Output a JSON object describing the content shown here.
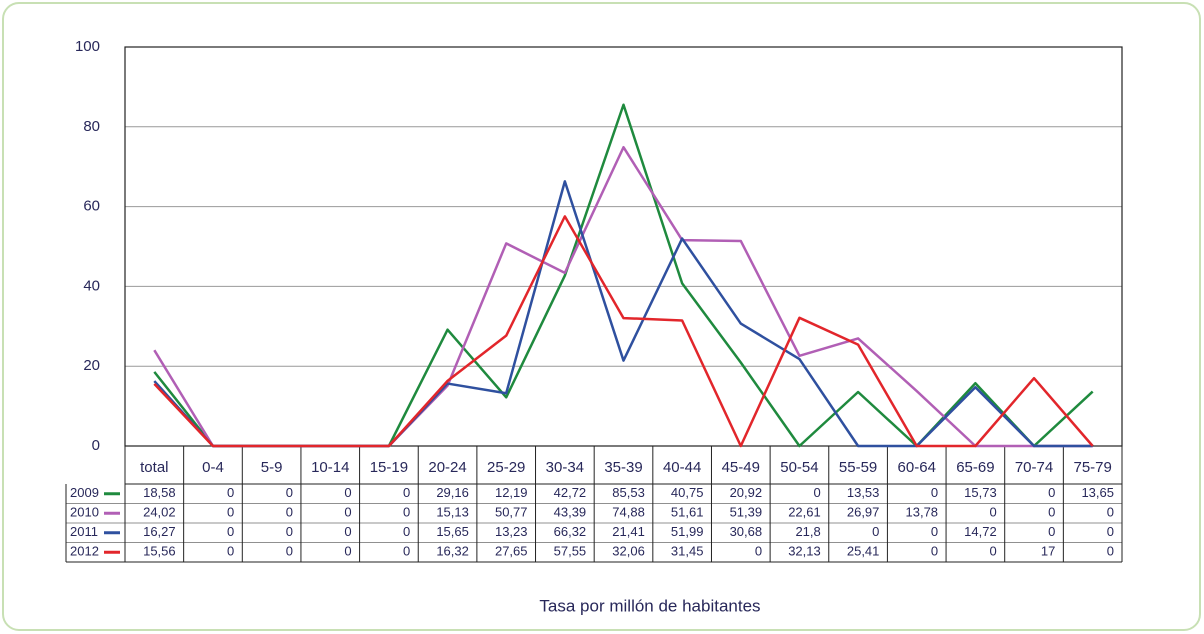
{
  "chart_data": {
    "type": "line",
    "categories": [
      "total",
      "0-4",
      "5-9",
      "10-14",
      "15-19",
      "20-24",
      "25-29",
      "30-34",
      "35-39",
      "40-44",
      "45-49",
      "50-54",
      "55-59",
      "60-64",
      "65-69",
      "70-74",
      "75-79"
    ],
    "series": [
      {
        "name": "2009",
        "color": "#1f8a3e",
        "values": [
          18.58,
          0,
          0,
          0,
          0,
          29.16,
          12.19,
          42.72,
          85.53,
          40.75,
          20.92,
          0,
          13.53,
          0,
          15.73,
          0,
          13.65
        ],
        "value_labels": [
          "18,58",
          "0",
          "0",
          "0",
          "0",
          "29,16",
          "12,19",
          "42,72",
          "85,53",
          "40,75",
          "20,92",
          "0",
          "13,53",
          "0",
          "15,73",
          "0",
          "13,65"
        ]
      },
      {
        "name": "2010",
        "color": "#b15fb5",
        "values": [
          24.02,
          0,
          0,
          0,
          0,
          15.13,
          50.77,
          43.39,
          74.88,
          51.61,
          51.39,
          22.61,
          26.97,
          13.78,
          0,
          0,
          0
        ],
        "value_labels": [
          "24,02",
          "0",
          "0",
          "0",
          "0",
          "15,13",
          "50,77",
          "43,39",
          "74,88",
          "51,61",
          "51,39",
          "22,61",
          "26,97",
          "13,78",
          "0",
          "0",
          "0"
        ]
      },
      {
        "name": "2011",
        "color": "#2f509f",
        "values": [
          16.27,
          0,
          0,
          0,
          0,
          15.65,
          13.23,
          66.32,
          21.41,
          51.99,
          30.68,
          21.8,
          0,
          0,
          14.72,
          0,
          0
        ],
        "value_labels": [
          "16,27",
          "0",
          "0",
          "0",
          "0",
          "15,65",
          "13,23",
          "66,32",
          "21,41",
          "51,99",
          "30,68",
          "21,8",
          "0",
          "0",
          "14,72",
          "0",
          "0"
        ]
      },
      {
        "name": "2012",
        "color": "#e2262b",
        "values": [
          15.56,
          0,
          0,
          0,
          0,
          16.32,
          27.65,
          57.55,
          32.06,
          31.45,
          0,
          32.13,
          25.41,
          0,
          0,
          17,
          0
        ],
        "value_labels": [
          "15,56",
          "0",
          "0",
          "0",
          "0",
          "16,32",
          "27,65",
          "57,55",
          "32,06",
          "31,45",
          "0",
          "32,13",
          "25,41",
          "0",
          "0",
          "17",
          "0"
        ]
      }
    ],
    "ylim": [
      0,
      100
    ],
    "yticks": [
      0,
      20,
      40,
      60,
      80,
      100
    ],
    "grid": true,
    "x_label": "Tasa por millón de habitantes"
  }
}
